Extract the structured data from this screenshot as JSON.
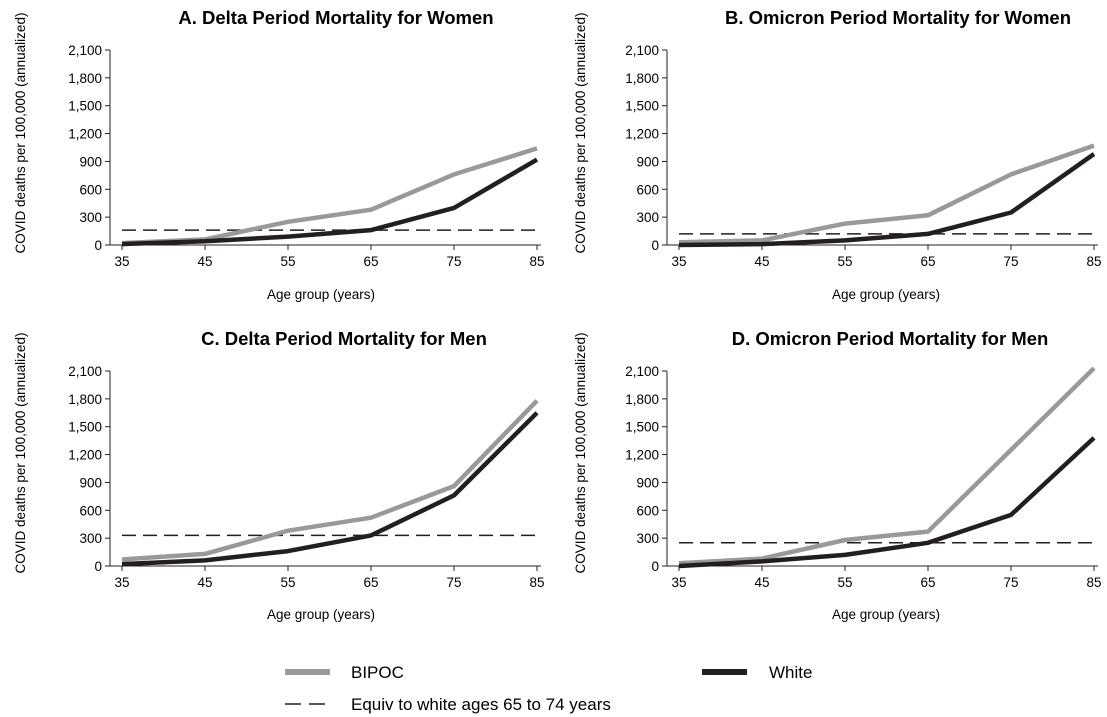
{
  "chart_data": [
    {
      "type": "line",
      "title": "A. Delta Period Mortality for Women",
      "xlabel": "Age group (years)",
      "ylabel": "COVID deaths per 100,000 (annualized)",
      "x": [
        35,
        45,
        55,
        65,
        75,
        85
      ],
      "x_tick_labels": [
        "35",
        "45",
        "55",
        "65",
        "75",
        "85"
      ],
      "ylim": [
        0,
        2100
      ],
      "y_ticks": [
        0,
        300,
        600,
        900,
        1200,
        1500,
        1800,
        2100
      ],
      "y_tick_labels": [
        "0",
        "300",
        "600",
        "900",
        "1,200",
        "1,500",
        "1,800",
        "2,100"
      ],
      "series": [
        {
          "name": "BIPOC",
          "color": "#999999",
          "values": [
            20,
            60,
            250,
            380,
            760,
            1040
          ]
        },
        {
          "name": "White",
          "color": "#231f20",
          "values": [
            10,
            40,
            90,
            160,
            400,
            920
          ]
        }
      ],
      "reference_line": {
        "name": "Equiv to white ages 65 to 74 years",
        "value": 160
      }
    },
    {
      "type": "line",
      "title": "B. Omicron Period Mortality for Women",
      "xlabel": "Age group (years)",
      "ylabel": "COVID deaths per 100,000 (annualized)",
      "x": [
        35,
        45,
        55,
        65,
        75,
        85
      ],
      "x_tick_labels": [
        "35",
        "45",
        "55",
        "65",
        "75",
        "85"
      ],
      "ylim": [
        0,
        2100
      ],
      "y_ticks": [
        0,
        300,
        600,
        900,
        1200,
        1500,
        1800,
        2100
      ],
      "y_tick_labels": [
        "0",
        "300",
        "600",
        "900",
        "1,200",
        "1,500",
        "1,800",
        "2,100"
      ],
      "series": [
        {
          "name": "BIPOC",
          "color": "#999999",
          "values": [
            30,
            50,
            230,
            320,
            760,
            1070
          ]
        },
        {
          "name": "White",
          "color": "#231f20",
          "values": [
            0,
            10,
            50,
            120,
            350,
            980
          ]
        }
      ],
      "reference_line": {
        "name": "Equiv to white ages 65 to 74 years",
        "value": 120
      }
    },
    {
      "type": "line",
      "title": "C. Delta Period Mortality for Men",
      "xlabel": "Age group (years)",
      "ylabel": "COVID deaths per 100,000 (annualized)",
      "x": [
        35,
        45,
        55,
        65,
        75,
        85
      ],
      "x_tick_labels": [
        "35",
        "45",
        "55",
        "65",
        "75",
        "85"
      ],
      "ylim": [
        0,
        2100
      ],
      "y_ticks": [
        0,
        300,
        600,
        900,
        1200,
        1500,
        1800,
        2100
      ],
      "y_tick_labels": [
        "0",
        "300",
        "600",
        "900",
        "1,200",
        "1,500",
        "1,800",
        "2,100"
      ],
      "series": [
        {
          "name": "BIPOC",
          "color": "#999999",
          "values": [
            70,
            130,
            380,
            520,
            860,
            1780
          ]
        },
        {
          "name": "White",
          "color": "#231f20",
          "values": [
            20,
            60,
            160,
            330,
            760,
            1650
          ]
        }
      ],
      "reference_line": {
        "name": "Equiv to white ages 65 to 74 years",
        "value": 330
      }
    },
    {
      "type": "line",
      "title": "D. Omicron Period Mortality for Men",
      "xlabel": "Age group (years)",
      "ylabel": "COVID deaths per 100,000 (annualized)",
      "x": [
        35,
        45,
        55,
        65,
        75,
        85
      ],
      "x_tick_labels": [
        "35",
        "45",
        "55",
        "65",
        "75",
        "85"
      ],
      "ylim": [
        0,
        2100
      ],
      "y_ticks": [
        0,
        300,
        600,
        900,
        1200,
        1500,
        1800,
        2100
      ],
      "y_tick_labels": [
        "0",
        "300",
        "600",
        "900",
        "1,200",
        "1,500",
        "1,800",
        "2,100"
      ],
      "series": [
        {
          "name": "BIPOC",
          "color": "#999999",
          "values": [
            30,
            80,
            280,
            370,
            1250,
            2130
          ]
        },
        {
          "name": "White",
          "color": "#231f20",
          "values": [
            0,
            50,
            120,
            250,
            550,
            1380
          ]
        }
      ],
      "reference_line": {
        "name": "Equiv to white ages 65 to 74 years",
        "value": 250
      }
    }
  ],
  "legend": {
    "position": "bottom",
    "items": [
      {
        "label": "BIPOC",
        "style": "solid",
        "color": "#999999"
      },
      {
        "label": "White",
        "style": "solid",
        "color": "#231f20"
      },
      {
        "label": "Equiv to white ages 65 to 74 years",
        "style": "dashed",
        "color": "#231f20"
      }
    ]
  }
}
